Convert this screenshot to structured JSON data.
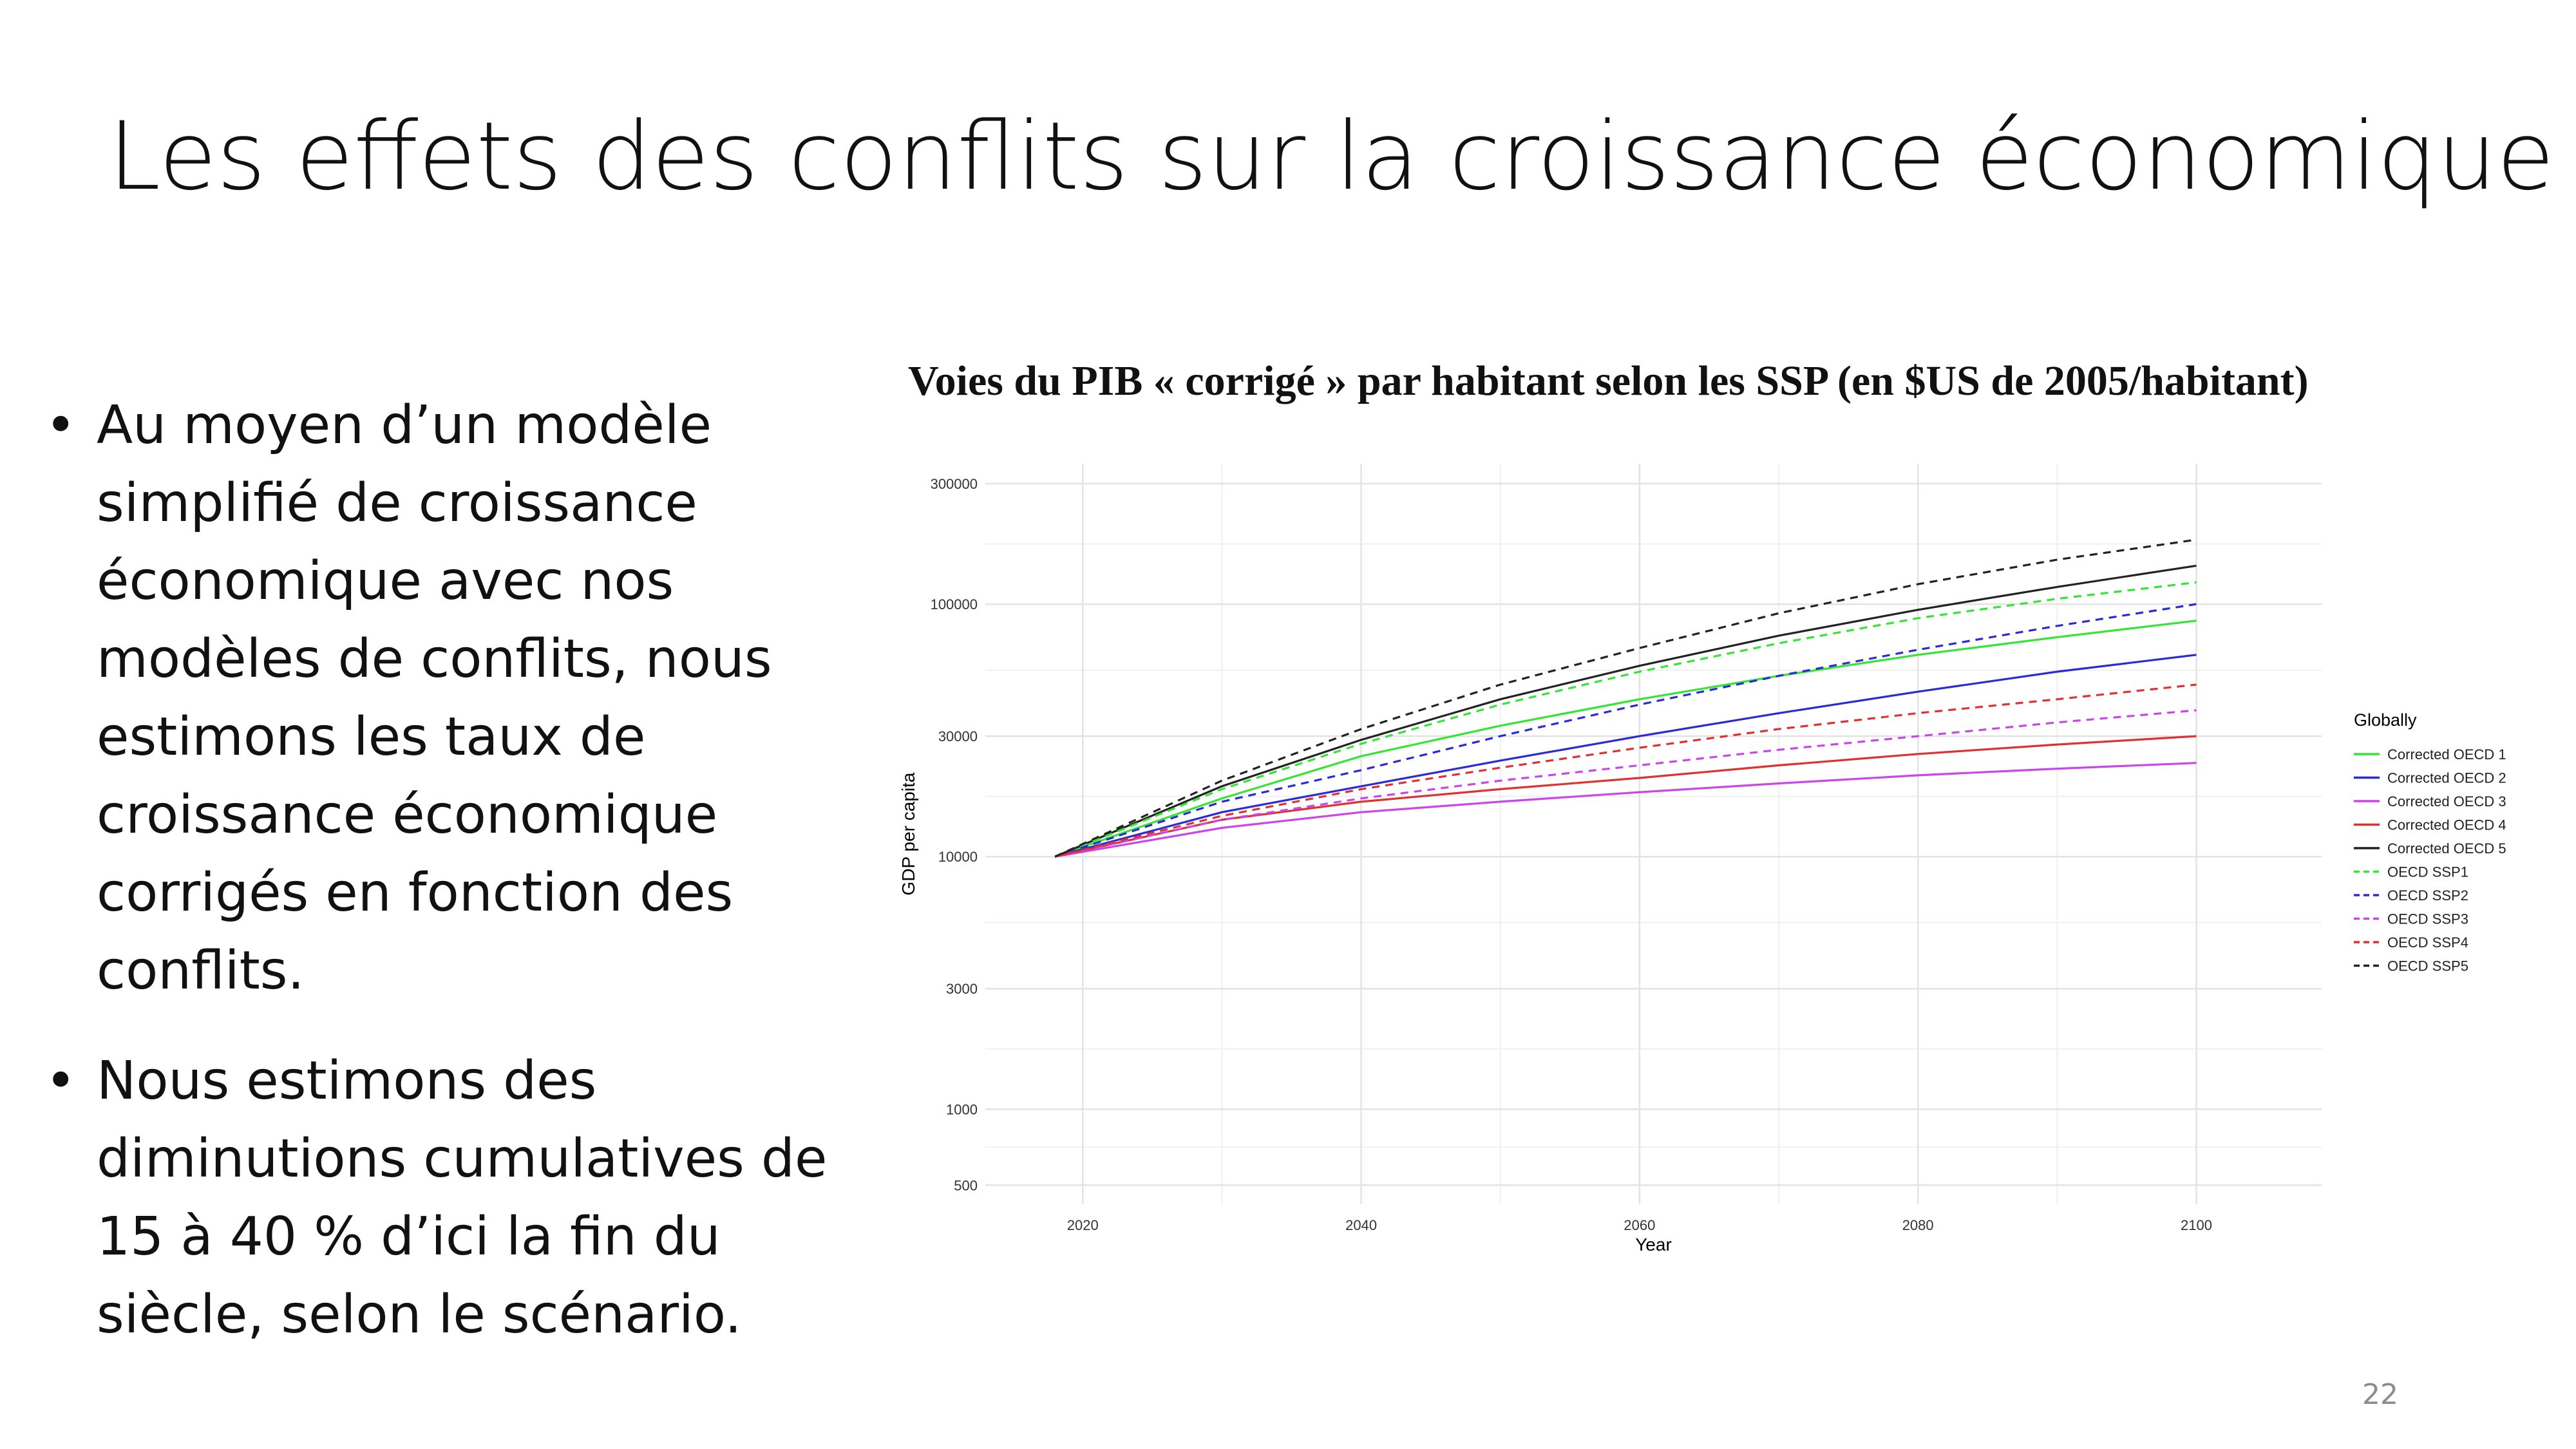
{
  "slide": {
    "title": "Les effets des conflits sur la croissance économique",
    "bullets": [
      "Au moyen d’un modèle simplifié de croissance économique avec nos modèles de conflits, nous estimons les taux de croissance économique corrigés en fonction des conflits.",
      "Nous estimons des diminutions cumulatives de 15 à 40 % d’ici la fin du siècle, selon le scénario."
    ],
    "bullet_symbol": "•",
    "page_number": "22"
  },
  "chart_title": "Voies du PIB « corrigé » par habitant selon les SSP (en $US de 2005/habitant)",
  "chart_data": {
    "type": "line",
    "xlabel": "Year",
    "ylabel": "GDP per capita",
    "y_scale": "log",
    "xlim": [
      2013,
      2109
    ],
    "ylim": [
      420,
      360000
    ],
    "x_ticks": [
      2020,
      2040,
      2060,
      2080,
      2100
    ],
    "y_ticks": [
      500,
      1000,
      3000,
      10000,
      30000,
      100000,
      300000
    ],
    "y_tick_labels": [
      "500",
      "1000",
      "3000",
      "10000",
      "30000",
      "100000",
      "300000"
    ],
    "grid": true,
    "legend": {
      "title": "Globally",
      "position": "right"
    },
    "x": [
      2018,
      2030,
      2040,
      2050,
      2060,
      2070,
      2080,
      2090,
      2100
    ],
    "series": [
      {
        "name": "Corrected OECD 1",
        "color": "#33e633",
        "dash": "solid",
        "values": [
          10000,
          17000,
          25000,
          33000,
          42000,
          52000,
          63000,
          74000,
          86000
        ]
      },
      {
        "name": "Corrected OECD 2",
        "color": "#2a2ad9",
        "dash": "solid",
        "values": [
          10000,
          15000,
          19000,
          24000,
          30000,
          37000,
          45000,
          54000,
          63000
        ]
      },
      {
        "name": "Corrected OECD 3",
        "color": "#cc44ee",
        "dash": "solid",
        "values": [
          10000,
          13000,
          15000,
          16500,
          18000,
          19500,
          21000,
          22300,
          23500
        ]
      },
      {
        "name": "Corrected OECD 4",
        "color": "#e03030",
        "dash": "solid",
        "values": [
          10000,
          14000,
          16500,
          18500,
          20500,
          23000,
          25500,
          27800,
          30000
        ]
      },
      {
        "name": "Corrected OECD 5",
        "color": "#222222",
        "dash": "solid",
        "values": [
          10000,
          19000,
          29000,
          42000,
          57000,
          75000,
          95000,
          117000,
          142000
        ]
      },
      {
        "name": "OECD SSP1",
        "color": "#33e633",
        "dash": "dashed",
        "values": [
          10000,
          18500,
          28000,
          40000,
          54000,
          70000,
          88000,
          105000,
          122000
        ]
      },
      {
        "name": "OECD SSP2",
        "color": "#2a2ad9",
        "dash": "dashed",
        "values": [
          10000,
          16500,
          22000,
          30000,
          40000,
          52000,
          66000,
          82000,
          100000
        ]
      },
      {
        "name": "OECD SSP3",
        "color": "#cc44ee",
        "dash": "dashed",
        "values": [
          10000,
          14000,
          17000,
          20000,
          23000,
          26500,
          30000,
          34000,
          38000
        ]
      },
      {
        "name": "OECD SSP4",
        "color": "#e03030",
        "dash": "dashed",
        "values": [
          10000,
          14500,
          18500,
          22500,
          27000,
          32000,
          37000,
          42000,
          48000
        ]
      },
      {
        "name": "OECD SSP5",
        "color": "#222222",
        "dash": "dashed",
        "values": [
          10000,
          20000,
          32000,
          48000,
          67000,
          92000,
          120000,
          150000,
          180000
        ]
      }
    ]
  }
}
